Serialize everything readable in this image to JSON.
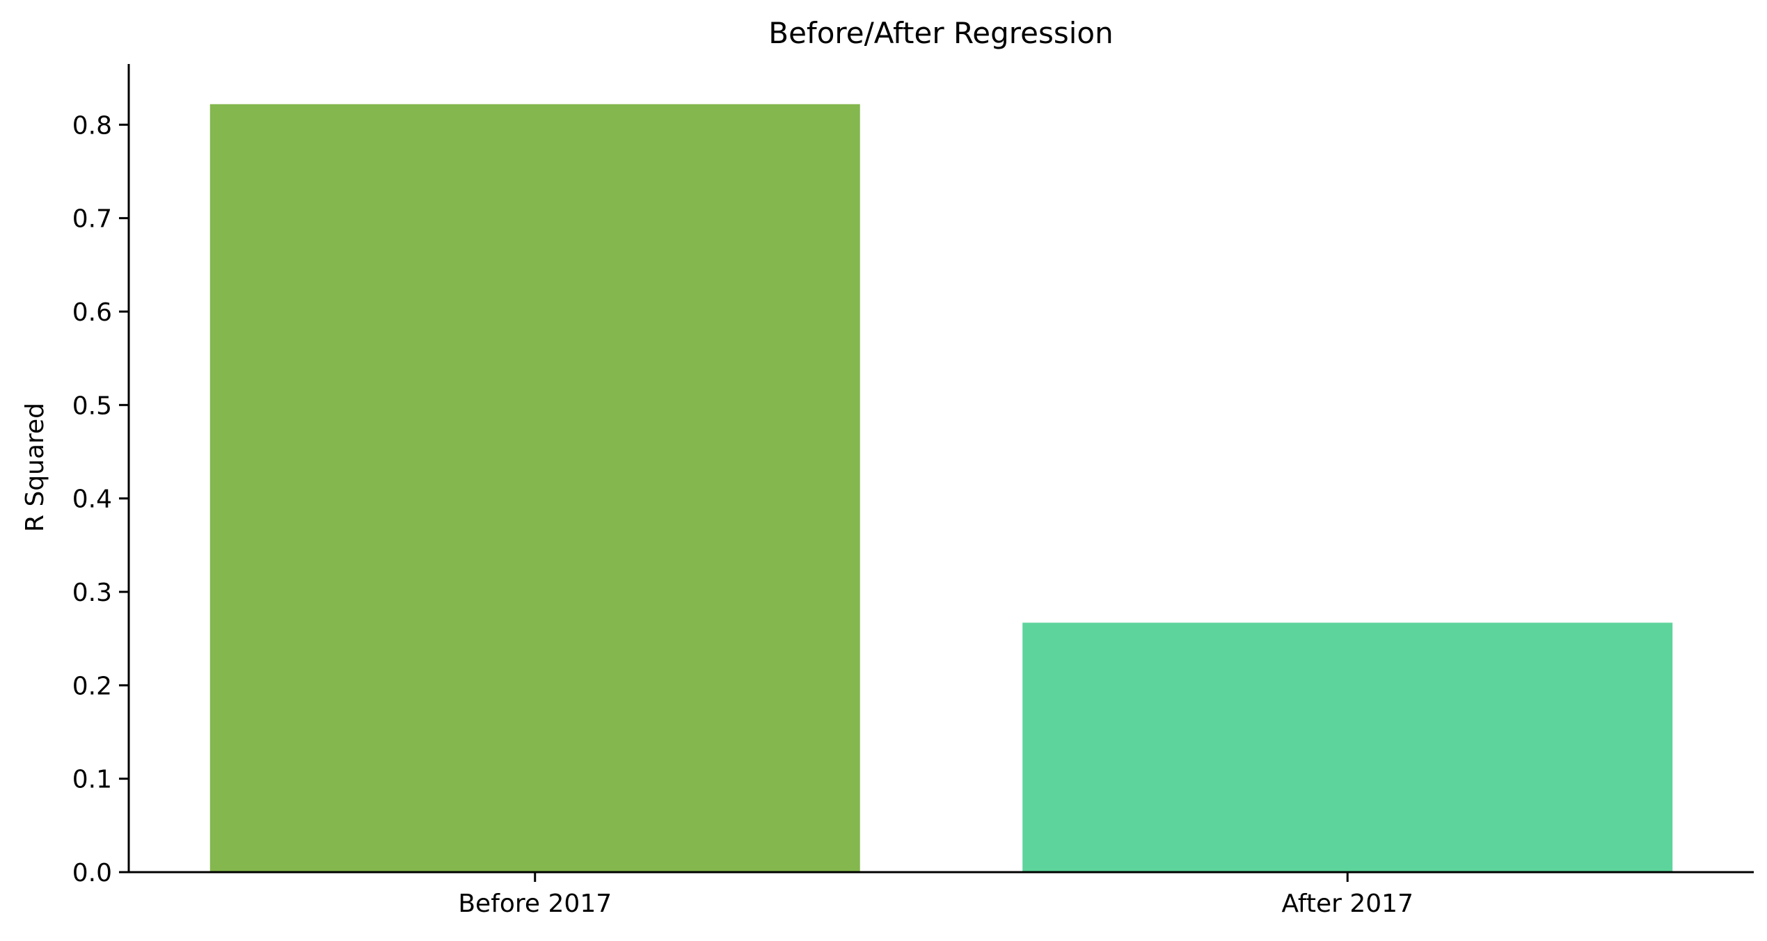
{
  "chart_data": {
    "type": "bar",
    "title": "Before/After Regression",
    "xlabel": "",
    "ylabel": "R Squared",
    "categories": [
      "Before 2017",
      "After 2017"
    ],
    "values": [
      0.822,
      0.267
    ],
    "bar_colors": [
      "#84b74e",
      "#5dd49b"
    ],
    "ylim": [
      0,
      0.865
    ],
    "yticks": [
      0.0,
      0.1,
      0.2,
      0.3,
      0.4,
      0.5,
      0.6,
      0.7,
      0.8
    ],
    "ytick_labels": [
      "0.0",
      "0.1",
      "0.2",
      "0.3",
      "0.4",
      "0.5",
      "0.6",
      "0.7",
      "0.8"
    ],
    "grid": false,
    "legend": "none",
    "spines": "left-bottom"
  }
}
